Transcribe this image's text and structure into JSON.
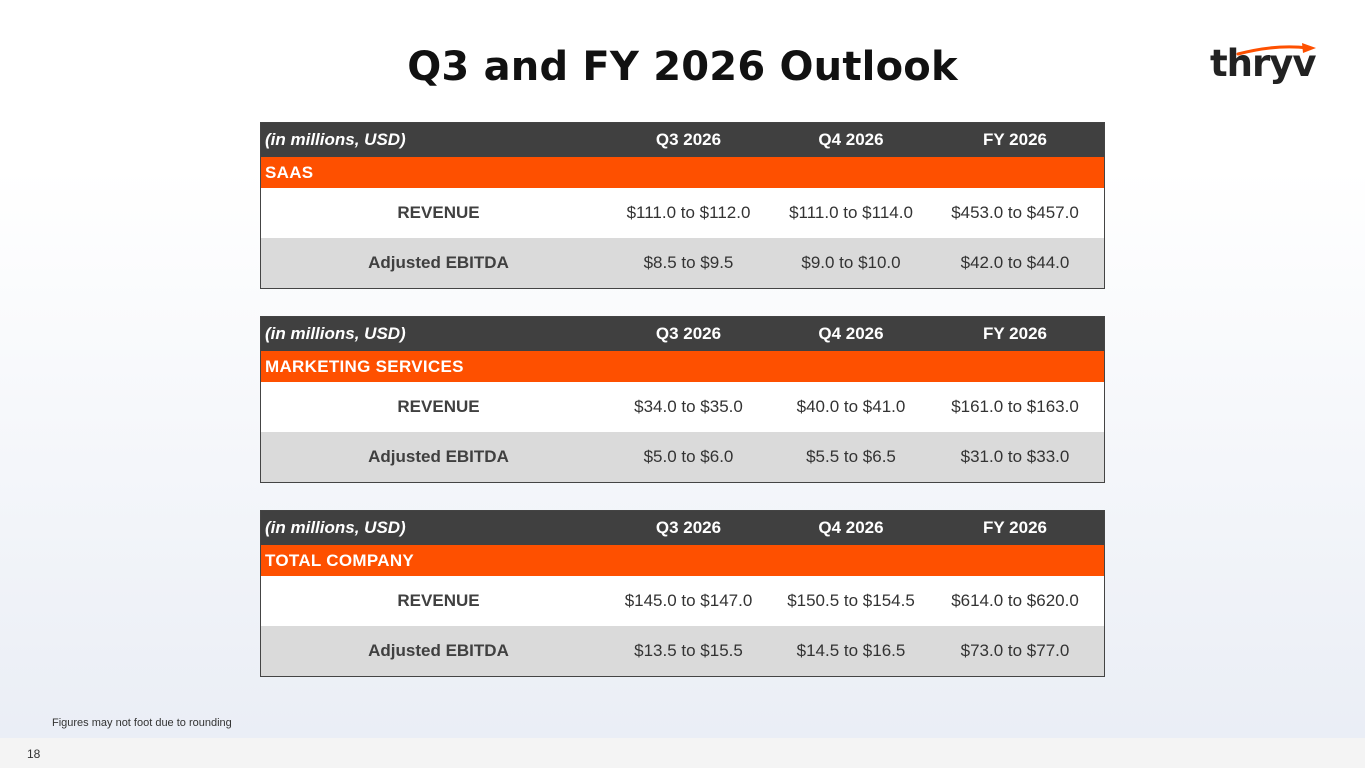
{
  "title": "Q3 and FY 2026 Outlook",
  "logo": {
    "text": "thryv"
  },
  "colors": {
    "accent": "#fe5000",
    "header_bg": "#404040",
    "alt_row": "#dadada"
  },
  "tables": [
    {
      "header": [
        "(in millions, USD)",
        "Q3 2026",
        "Q4 2026",
        "FY 2026"
      ],
      "section": "SAAS",
      "rows": [
        [
          "REVENUE",
          "$111.0 to $112.0",
          "$111.0 to $114.0",
          "$453.0 to $457.0"
        ],
        [
          "Adjusted EBITDA",
          "$8.5 to $9.5",
          "$9.0 to $10.0",
          "$42.0 to $44.0"
        ]
      ]
    },
    {
      "header": [
        "(in millions, USD)",
        "Q3 2026",
        "Q4 2026",
        "FY 2026"
      ],
      "section": "MARKETING SERVICES",
      "rows": [
        [
          "REVENUE",
          "$34.0 to $35.0",
          "$40.0 to $41.0",
          "$161.0 to $163.0"
        ],
        [
          "Adjusted EBITDA",
          "$5.0 to $6.0",
          "$5.5 to $6.5",
          "$31.0 to $33.0"
        ]
      ]
    },
    {
      "header": [
        "(in millions, USD)",
        "Q3 2026",
        "Q4 2026",
        "FY 2026"
      ],
      "section": "TOTAL COMPANY",
      "rows": [
        [
          "REVENUE",
          "$145.0 to $147.0",
          "$150.5 to $154.5",
          "$614.0 to $620.0"
        ],
        [
          "Adjusted EBITDA",
          "$13.5 to $15.5",
          "$14.5 to $16.5",
          "$73.0 to $77.0"
        ]
      ]
    }
  ],
  "footnote": "Figures may not foot due to rounding",
  "page_number": "18"
}
